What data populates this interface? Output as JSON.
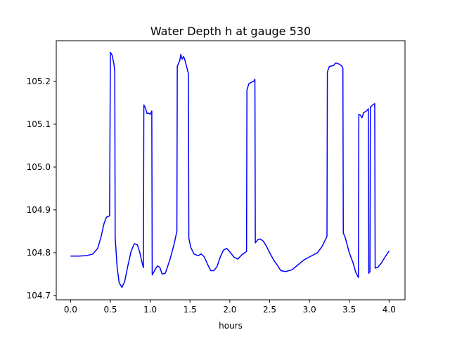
{
  "chart_data": {
    "type": "line",
    "title": "Water Depth h at gauge 530",
    "xlabel": "hours",
    "ylabel": "",
    "xlim": [
      -0.18,
      4.2
    ],
    "ylim": [
      104.69,
      105.295
    ],
    "grid": false,
    "legend": "none",
    "xticks": [
      0.0,
      0.5,
      1.0,
      1.5,
      2.0,
      2.5,
      3.0,
      3.5,
      4.0
    ],
    "xtick_labels": [
      "0.0",
      "0.5",
      "1.0",
      "1.5",
      "2.0",
      "2.5",
      "3.0",
      "3.5",
      "4.0"
    ],
    "yticks": [
      104.7,
      104.8,
      104.9,
      105.0,
      105.1,
      105.2
    ],
    "ytick_labels": [
      "104.7",
      "104.8",
      "104.9",
      "105.0",
      "105.1",
      "105.2"
    ],
    "series": [
      {
        "color": "#0000ff",
        "points": [
          [
            0.0,
            104.792
          ],
          [
            0.1,
            104.792
          ],
          [
            0.2,
            104.793
          ],
          [
            0.28,
            104.797
          ],
          [
            0.34,
            104.81
          ],
          [
            0.38,
            104.835
          ],
          [
            0.42,
            104.868
          ],
          [
            0.45,
            104.883
          ],
          [
            0.49,
            104.886
          ],
          [
            0.5,
            105.268
          ],
          [
            0.52,
            105.262
          ],
          [
            0.545,
            105.24
          ],
          [
            0.555,
            105.222
          ],
          [
            0.56,
            104.835
          ],
          [
            0.585,
            104.765
          ],
          [
            0.61,
            104.73
          ],
          [
            0.645,
            104.719
          ],
          [
            0.68,
            104.733
          ],
          [
            0.72,
            104.77
          ],
          [
            0.76,
            104.803
          ],
          [
            0.8,
            104.821
          ],
          [
            0.84,
            104.818
          ],
          [
            0.87,
            104.8
          ],
          [
            0.9,
            104.775
          ],
          [
            0.915,
            104.765
          ],
          [
            0.92,
            105.145
          ],
          [
            0.94,
            105.138
          ],
          [
            0.96,
            105.125
          ],
          [
            0.98,
            105.126
          ],
          [
            1.0,
            105.123
          ],
          [
            1.02,
            105.131
          ],
          [
            1.025,
            104.748
          ],
          [
            1.06,
            104.76
          ],
          [
            1.09,
            104.769
          ],
          [
            1.12,
            104.766
          ],
          [
            1.15,
            104.75
          ],
          [
            1.19,
            104.752
          ],
          [
            1.25,
            104.785
          ],
          [
            1.3,
            104.82
          ],
          [
            1.335,
            104.85
          ],
          [
            1.34,
            105.235
          ],
          [
            1.37,
            105.248
          ],
          [
            1.385,
            105.263
          ],
          [
            1.4,
            105.252
          ],
          [
            1.42,
            105.258
          ],
          [
            1.44,
            105.247
          ],
          [
            1.48,
            105.218
          ],
          [
            1.485,
            104.834
          ],
          [
            1.51,
            104.812
          ],
          [
            1.55,
            104.797
          ],
          [
            1.6,
            104.793
          ],
          [
            1.64,
            104.797
          ],
          [
            1.68,
            104.79
          ],
          [
            1.72,
            104.773
          ],
          [
            1.76,
            104.758
          ],
          [
            1.8,
            104.758
          ],
          [
            1.84,
            104.768
          ],
          [
            1.88,
            104.79
          ],
          [
            1.92,
            104.806
          ],
          [
            1.96,
            104.81
          ],
          [
            2.0,
            104.802
          ],
          [
            2.05,
            104.79
          ],
          [
            2.1,
            104.785
          ],
          [
            2.15,
            104.795
          ],
          [
            2.21,
            104.803
          ],
          [
            2.215,
            105.18
          ],
          [
            2.24,
            105.195
          ],
          [
            2.27,
            105.198
          ],
          [
            2.3,
            105.2
          ],
          [
            2.315,
            105.205
          ],
          [
            2.32,
            104.823
          ],
          [
            2.35,
            104.83
          ],
          [
            2.38,
            104.832
          ],
          [
            2.42,
            104.827
          ],
          [
            2.46,
            104.815
          ],
          [
            2.5,
            104.8
          ],
          [
            2.55,
            104.783
          ],
          [
            2.6,
            104.77
          ],
          [
            2.64,
            104.758
          ],
          [
            2.7,
            104.756
          ],
          [
            2.78,
            104.76
          ],
          [
            2.86,
            104.772
          ],
          [
            2.93,
            104.783
          ],
          [
            3.0,
            104.79
          ],
          [
            3.1,
            104.8
          ],
          [
            3.16,
            104.815
          ],
          [
            3.22,
            104.838
          ],
          [
            3.225,
            105.222
          ],
          [
            3.25,
            105.235
          ],
          [
            3.3,
            105.237
          ],
          [
            3.33,
            105.243
          ],
          [
            3.38,
            105.24
          ],
          [
            3.41,
            105.235
          ],
          [
            3.42,
            105.23
          ],
          [
            3.425,
            104.846
          ],
          [
            3.45,
            104.835
          ],
          [
            3.5,
            104.8
          ],
          [
            3.55,
            104.775
          ],
          [
            3.58,
            104.755
          ],
          [
            3.615,
            104.742
          ],
          [
            3.62,
            105.123
          ],
          [
            3.64,
            105.121
          ],
          [
            3.66,
            105.115
          ],
          [
            3.68,
            105.127
          ],
          [
            3.71,
            105.13
          ],
          [
            3.74,
            105.136
          ],
          [
            3.745,
            104.752
          ],
          [
            3.76,
            104.756
          ],
          [
            3.765,
            105.14
          ],
          [
            3.8,
            105.146
          ],
          [
            3.82,
            105.148
          ],
          [
            3.825,
            104.764
          ],
          [
            3.86,
            104.766
          ],
          [
            3.9,
            104.775
          ],
          [
            3.95,
            104.79
          ],
          [
            4.0,
            104.804
          ]
        ]
      }
    ]
  }
}
